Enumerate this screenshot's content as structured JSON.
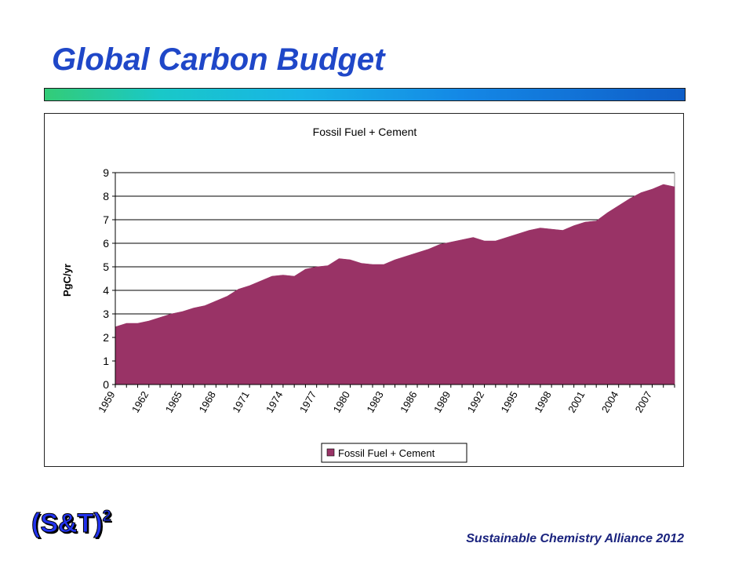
{
  "slide": {
    "title": "Global Carbon Budget",
    "logo_text": "(S&T)",
    "logo_superscript": "2",
    "footer": "Sustainable Chemistry Alliance 2012"
  },
  "colors": {
    "title": "#1f47c8",
    "series_fill": "#993366",
    "logo": "#2233ee",
    "footer": "#1a237e"
  },
  "chart_data": {
    "type": "area",
    "title": "Fossil Fuel + Cement",
    "xlabel": "",
    "ylabel": "PgC/yr",
    "ylim": [
      0,
      9
    ],
    "yticks": [
      0,
      1,
      2,
      3,
      4,
      5,
      6,
      7,
      8,
      9
    ],
    "grid": "horizontal",
    "legend_position": "bottom-center",
    "x": [
      1959,
      1960,
      1961,
      1962,
      1963,
      1964,
      1965,
      1966,
      1967,
      1968,
      1969,
      1970,
      1971,
      1972,
      1973,
      1974,
      1975,
      1976,
      1977,
      1978,
      1979,
      1980,
      1981,
      1982,
      1983,
      1984,
      1985,
      1986,
      1987,
      1988,
      1989,
      1990,
      1991,
      1992,
      1993,
      1994,
      1995,
      1996,
      1997,
      1998,
      1999,
      2000,
      2001,
      2002,
      2003,
      2004,
      2005,
      2006,
      2007,
      2008,
      2009
    ],
    "xtick_labels": [
      "1959",
      "1962",
      "1965",
      "1968",
      "1971",
      "1974",
      "1977",
      "1980",
      "1983",
      "1986",
      "1989",
      "1992",
      "1995",
      "1998",
      "2001",
      "2004",
      "2007"
    ],
    "series": [
      {
        "name": "Fossil Fuel + Cement",
        "color": "#993366",
        "values": [
          2.45,
          2.6,
          2.6,
          2.7,
          2.85,
          3.0,
          3.1,
          3.25,
          3.35,
          3.55,
          3.75,
          4.05,
          4.2,
          4.4,
          4.6,
          4.65,
          4.6,
          4.9,
          5.0,
          5.05,
          5.35,
          5.3,
          5.15,
          5.1,
          5.1,
          5.3,
          5.45,
          5.6,
          5.75,
          5.95,
          6.05,
          6.15,
          6.25,
          6.1,
          6.1,
          6.25,
          6.4,
          6.55,
          6.65,
          6.6,
          6.55,
          6.75,
          6.9,
          6.95,
          7.3,
          7.6,
          7.9,
          8.15,
          8.3,
          8.5,
          8.4
        ]
      }
    ]
  }
}
